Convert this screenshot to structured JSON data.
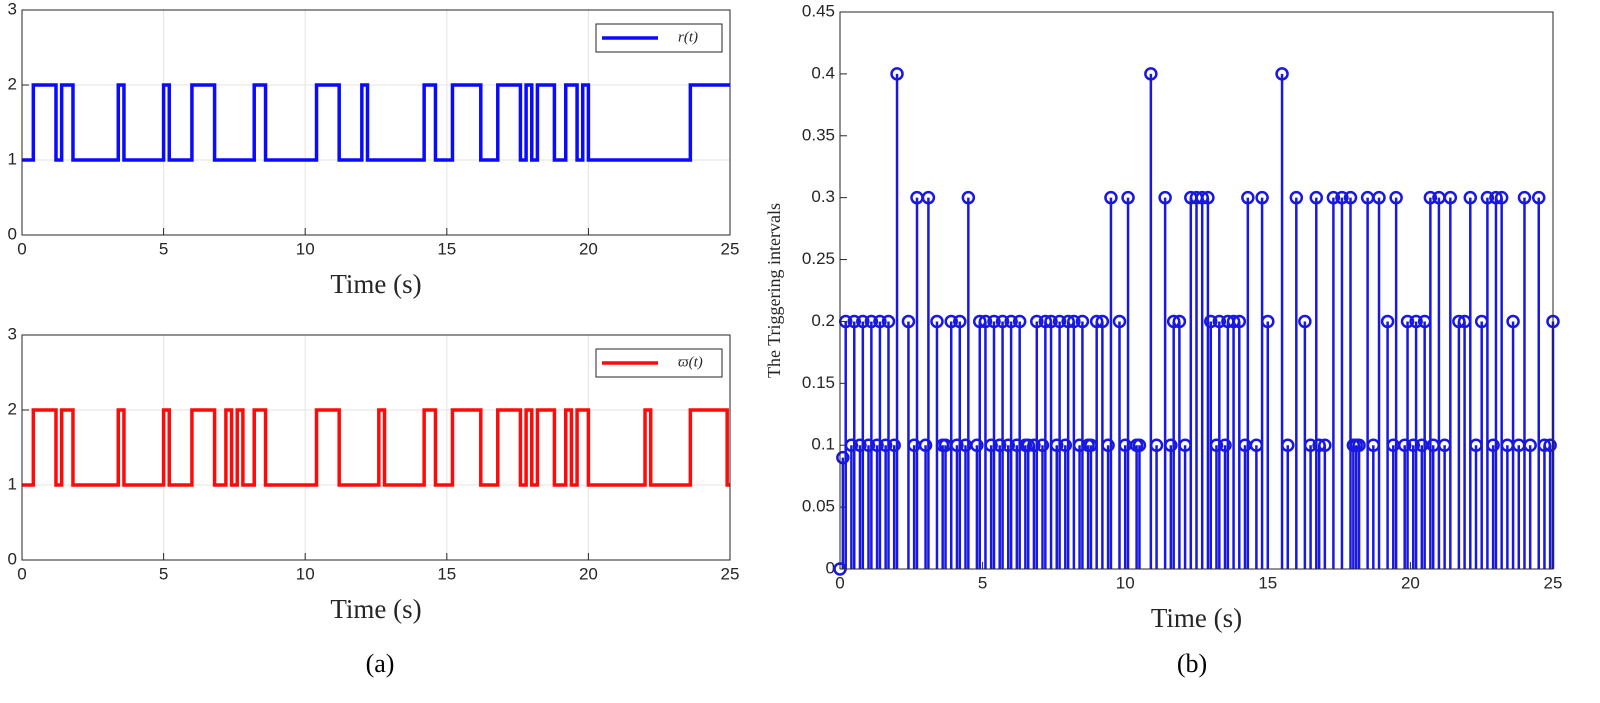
{
  "subcaptions": [
    "(a)",
    "(b)"
  ],
  "chart_data": [
    {
      "type": "step",
      "xlabel": "Time (s)",
      "xlim": [
        0,
        25
      ],
      "xticks": [
        0,
        5,
        10,
        15,
        20,
        25
      ],
      "ylim": [
        0,
        3
      ],
      "yticks": [
        0,
        1,
        2,
        3
      ],
      "grid": true,
      "legend": "upper right",
      "x": [
        0,
        0.4,
        1.2,
        1.4,
        1.8,
        3.4,
        3.6,
        5.0,
        5.2,
        6.0,
        6.8,
        8.2,
        8.6,
        10.4,
        11.2,
        12.0,
        12.2,
        14.2,
        14.6,
        15.2,
        16.2,
        16.8,
        17.6,
        17.8,
        18.0,
        18.2,
        18.8,
        19.2,
        19.6,
        19.8,
        20.0,
        23.6,
        25
      ],
      "series": [
        {
          "name": "r(t)",
          "color": "#0a0aff",
          "values": [
            1,
            2,
            1,
            2,
            1,
            2,
            1,
            2,
            1,
            2,
            1,
            2,
            1,
            2,
            1,
            2,
            1,
            2,
            1,
            2,
            1,
            2,
            1,
            2,
            1,
            2,
            1,
            2,
            1,
            2,
            1,
            2,
            2
          ]
        }
      ]
    },
    {
      "type": "step",
      "xlabel": "Time (s)",
      "xlim": [
        0,
        25
      ],
      "xticks": [
        0,
        5,
        10,
        15,
        20,
        25
      ],
      "ylim": [
        0,
        3
      ],
      "yticks": [
        0,
        1,
        2,
        3
      ],
      "grid": true,
      "legend": "upper right",
      "x": [
        0,
        0.4,
        1.2,
        1.4,
        1.8,
        3.4,
        3.6,
        5.0,
        5.2,
        6.0,
        6.8,
        7.2,
        7.4,
        7.6,
        7.8,
        8.2,
        8.6,
        10.4,
        11.2,
        12.6,
        12.8,
        14.2,
        14.6,
        15.2,
        16.2,
        16.8,
        17.6,
        17.8,
        18.0,
        18.2,
        18.8,
        19.2,
        19.4,
        19.6,
        20.0,
        22.0,
        22.2,
        23.6,
        24.9,
        25
      ],
      "series": [
        {
          "name": "ϖ(t)",
          "color": "#ff0a0a",
          "values": [
            1,
            2,
            1,
            2,
            1,
            2,
            1,
            2,
            1,
            2,
            1,
            2,
            1,
            2,
            1,
            2,
            1,
            2,
            1,
            2,
            1,
            2,
            1,
            2,
            1,
            2,
            1,
            2,
            1,
            2,
            1,
            2,
            1,
            2,
            1,
            2,
            1,
            2,
            1,
            1
          ]
        }
      ]
    },
    {
      "type": "stem",
      "xlabel": "Time (s)",
      "ylabel": "The Triggering intervals",
      "xlim": [
        0,
        25
      ],
      "xticks": [
        0,
        5,
        10,
        15,
        20,
        25
      ],
      "ylim": [
        0,
        0.45
      ],
      "yticks": [
        0,
        0.05,
        0.1,
        0.15,
        {
          "value": 0.2,
          "label": "0.2"
        },
        0.25,
        {
          "value": 0.3,
          "label": "0.3"
        },
        0.35,
        {
          "value": 0.4,
          "label": "0.4"
        },
        0.45
      ],
      "grid": false,
      "color": "#1818e0",
      "x": [
        0,
        0.1,
        0.2,
        0.4,
        0.5,
        0.7,
        0.8,
        1.0,
        1.1,
        1.3,
        1.4,
        1.6,
        1.7,
        1.9,
        2.0,
        2.4,
        2.6,
        2.7,
        3.0,
        3.1,
        3.4,
        3.6,
        3.7,
        3.9,
        4.1,
        4.2,
        4.4,
        4.5,
        4.8,
        4.9,
        5.1,
        5.3,
        5.4,
        5.6,
        5.7,
        5.9,
        6.0,
        6.2,
        6.3,
        6.5,
        6.6,
        6.8,
        6.9,
        7.1,
        7.2,
        7.4,
        7.6,
        7.7,
        7.9,
        8.0,
        8.2,
        8.4,
        8.5,
        8.7,
        8.8,
        9.0,
        9.2,
        9.4,
        9.5,
        9.8,
        10.0,
        10.1,
        10.4,
        10.5,
        10.9,
        11.1,
        11.4,
        11.6,
        11.7,
        11.9,
        12.1,
        12.3,
        12.5,
        12.7,
        12.9,
        13.0,
        13.2,
        13.3,
        13.5,
        13.6,
        13.8,
        14.0,
        14.2,
        14.3,
        14.6,
        14.8,
        15.0,
        15.5,
        15.7,
        16.0,
        16.3,
        16.5,
        16.7,
        16.8,
        17.0,
        17.3,
        17.6,
        17.9,
        18.0,
        18.1,
        18.2,
        18.5,
        18.7,
        18.9,
        19.2,
        19.4,
        19.5,
        19.8,
        19.9,
        20.1,
        20.2,
        20.4,
        20.5,
        20.7,
        20.8,
        21.0,
        21.2,
        21.4,
        21.7,
        21.9,
        22.1,
        22.3,
        22.5,
        22.7,
        22.9,
        23.0,
        23.2,
        23.4,
        23.6,
        23.8,
        24.0,
        24.2,
        24.5,
        24.7,
        24.9,
        25.0
      ],
      "values": [
        0,
        0.09,
        0.2,
        0.1,
        0.2,
        0.1,
        0.2,
        0.1,
        0.2,
        0.1,
        0.2,
        0.1,
        0.2,
        0.1,
        0.4,
        0.2,
        0.1,
        0.3,
        0.1,
        0.3,
        0.2,
        0.1,
        0.1,
        0.2,
        0.1,
        0.2,
        0.1,
        0.3,
        0.1,
        0.2,
        0.2,
        0.1,
        0.2,
        0.1,
        0.2,
        0.1,
        0.2,
        0.1,
        0.2,
        0.1,
        0.1,
        0.1,
        0.2,
        0.1,
        0.2,
        0.2,
        0.1,
        0.2,
        0.1,
        0.2,
        0.2,
        0.1,
        0.2,
        0.1,
        0.1,
        0.2,
        0.2,
        0.1,
        0.3,
        0.2,
        0.1,
        0.3,
        0.1,
        0.1,
        0.4,
        0.1,
        0.3,
        0.1,
        0.2,
        0.2,
        0.1,
        0.3,
        0.3,
        0.3,
        0.3,
        0.2,
        0.1,
        0.2,
        0.1,
        0.2,
        0.2,
        0.2,
        0.1,
        0.3,
        0.1,
        0.3,
        0.2,
        0.4,
        0.1,
        0.3,
        0.2,
        0.1,
        0.3,
        0.1,
        0.1,
        0.3,
        0.3,
        0.3,
        0.1,
        0.1,
        0.1,
        0.3,
        0.1,
        0.3,
        0.2,
        0.1,
        0.3,
        0.1,
        0.2,
        0.1,
        0.2,
        0.1,
        0.2,
        0.3,
        0.1,
        0.3,
        0.1,
        0.3,
        0.2,
        0.2,
        0.3,
        0.1,
        0.2,
        0.3,
        0.1,
        0.3,
        0.3,
        0.1,
        0.2,
        0.1,
        0.3,
        0.1,
        0.3,
        0.1,
        0.1,
        0.2
      ]
    }
  ]
}
